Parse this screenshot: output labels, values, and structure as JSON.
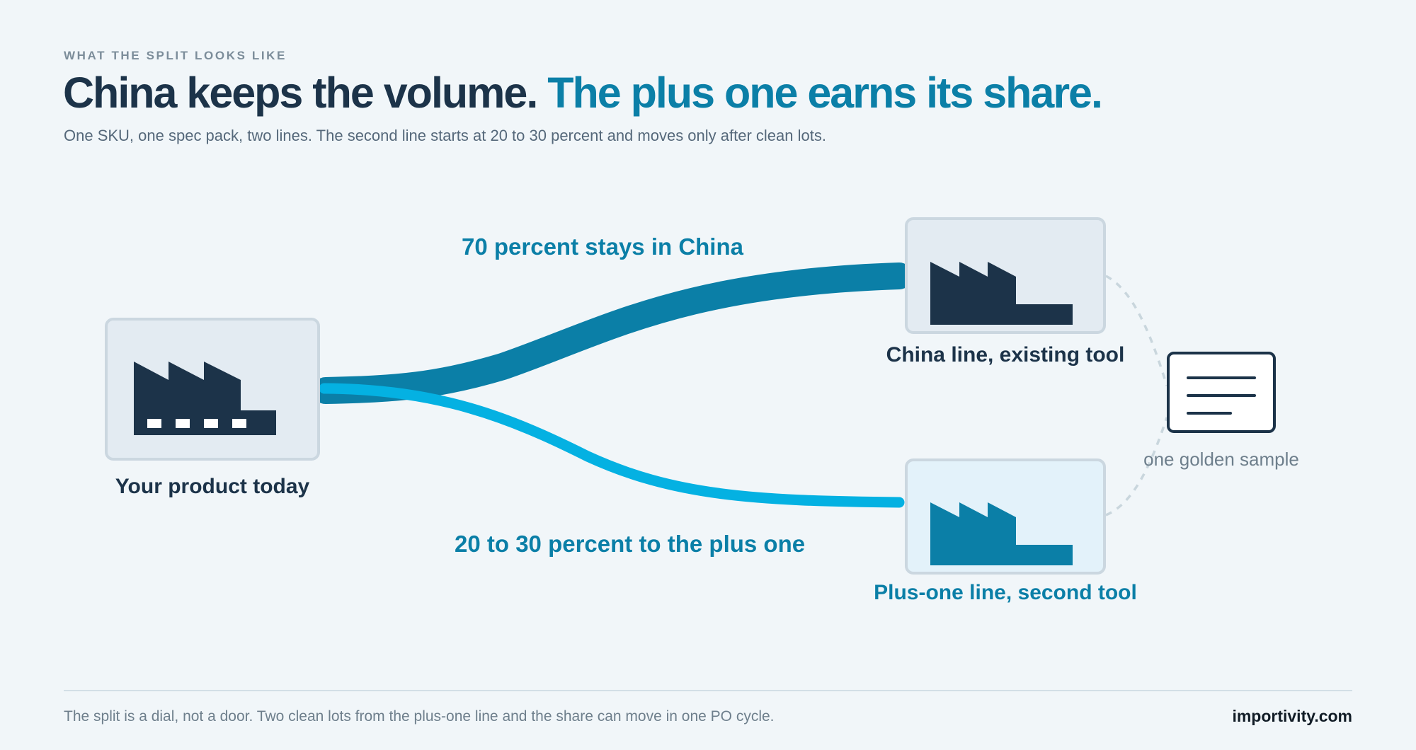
{
  "header": {
    "eyebrow": "WHAT THE SPLIT LOOKS LIKE",
    "title_main": "China keeps the volume.",
    "title_accent": "The plus one earns its share.",
    "subtitle": "One SKU, one spec pack, two lines. The second line starts at 20 to 30 percent and moves only after clean lots."
  },
  "diagram": {
    "source_label": "Your product today",
    "flow_china_label": "70 percent stays in China",
    "flow_plus_label": "20 to 30 percent to the plus one",
    "china_node_label": "China line, existing tool",
    "plus_node_label": "Plus-one line, second tool",
    "sample_label": "one golden sample",
    "icons": [
      "factory-icon",
      "document-icon"
    ],
    "colors": {
      "china_flow": "#0b7fa7",
      "plus_flow": "#04b1e2",
      "dark": "#1c3349"
    }
  },
  "footer": {
    "note": "The split is a dial, not a door. Two clean lots from the plus-one line and the share can move in one PO cycle.",
    "brand": "importivity.com"
  }
}
